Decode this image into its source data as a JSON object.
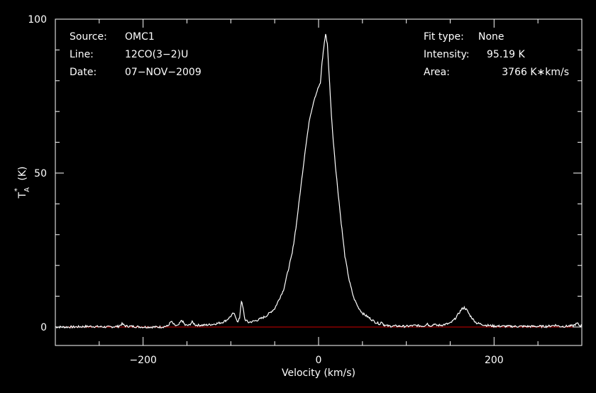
{
  "chart_data": {
    "type": "line",
    "title": "",
    "xlabel": "Velocity (km/s)",
    "ylabel": "T*A (K)",
    "xlim": [
      -300,
      300
    ],
    "ylim": [
      -6,
      100
    ],
    "x_ticks": [
      -200,
      0,
      200
    ],
    "x_tick_labels": [
      "−200",
      "0",
      "200"
    ],
    "y_ticks": [
      0,
      50,
      100
    ],
    "y_tick_labels": [
      "0",
      "50",
      "100"
    ],
    "grid": false,
    "baseline": 0,
    "colors": {
      "background": "#000000",
      "line": "#ffffff",
      "baseline": "#cc0000",
      "axes": "#ffffff"
    },
    "info_left": [
      {
        "key": "Source:",
        "value": "OMC1"
      },
      {
        "key": "Line:",
        "value": "12CO(3−2)U"
      },
      {
        "key": "Date:",
        "value": "07−NOV−2009"
      }
    ],
    "info_right": [
      {
        "key": "Fit type:",
        "value": "None"
      },
      {
        "key": "Intensity:",
        "value": "95.19 K"
      },
      {
        "key": "Area:",
        "value": "3766 K∗km/s"
      }
    ],
    "series": [
      {
        "x": [
          -300,
          -280,
          -260,
          -240,
          -228,
          -224,
          -220,
          -200,
          -180,
          -172,
          -168,
          -164,
          -160,
          -156,
          -152,
          -148,
          -144,
          -140,
          -130,
          -120,
          -115,
          -110,
          -105,
          -100,
          -97,
          -94,
          -92,
          -90,
          -88,
          -86,
          -84,
          -80,
          -75,
          -70,
          -60,
          -50,
          -40,
          -30,
          -25,
          -20,
          -15,
          -10,
          -5,
          0,
          2,
          4,
          6,
          8,
          10,
          12,
          14,
          16,
          20,
          25,
          30,
          35,
          40,
          45,
          50,
          60,
          65,
          70,
          72,
          74,
          76,
          80,
          90,
          100,
          110,
          120,
          124,
          126,
          130,
          132,
          134,
          140,
          150,
          155,
          160,
          163,
          166,
          169,
          172,
          176,
          180,
          190,
          200,
          220,
          240,
          260,
          270,
          275,
          280,
          290,
          295,
          298,
          300
        ],
        "y": [
          0,
          0,
          0.2,
          0,
          0.2,
          1,
          0.3,
          0,
          0,
          0.3,
          1.8,
          0.5,
          0.4,
          2.2,
          0.6,
          0.5,
          1.6,
          0.6,
          0.6,
          0.9,
          1.2,
          1.5,
          2.2,
          3.5,
          4.5,
          3,
          1.5,
          3,
          8.5,
          6,
          2.5,
          1.5,
          1.8,
          2.2,
          3.5,
          6,
          12,
          24,
          34,
          46,
          58,
          68,
          74,
          78,
          79,
          86,
          91,
          95.19,
          92,
          82,
          72,
          63,
          50,
          36,
          23,
          15,
          9.5,
          6.5,
          4.5,
          2.5,
          1.5,
          1,
          1.8,
          0.8,
          0.5,
          0.3,
          0.3,
          0.2,
          0.5,
          0.3,
          1.2,
          0.4,
          0.6,
          1.1,
          0.5,
          0.6,
          1.2,
          2.5,
          4.5,
          5.8,
          6.3,
          5.5,
          4,
          2.5,
          1.3,
          0.6,
          0.3,
          0.2,
          0.2,
          0.2,
          0.6,
          0.2,
          0.2,
          0.4,
          1.2,
          0.3,
          0.5
        ]
      }
    ]
  }
}
